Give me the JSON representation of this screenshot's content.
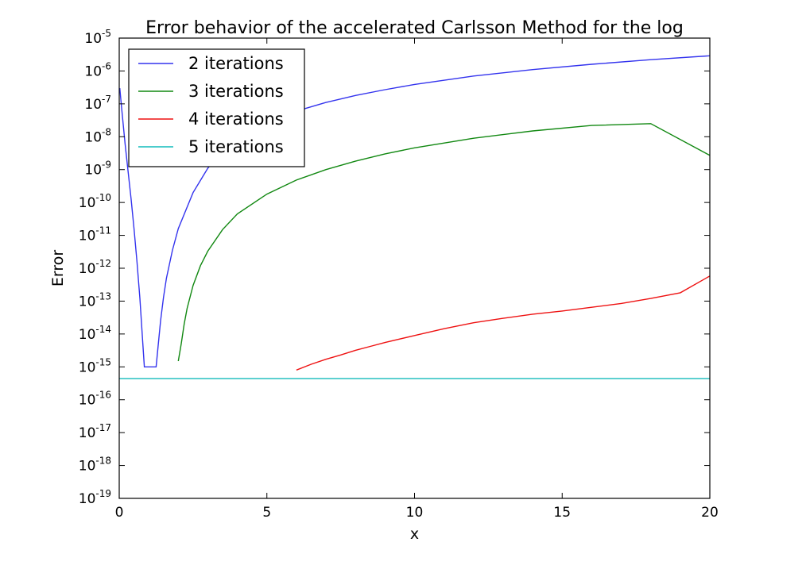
{
  "chart_data": {
    "type": "line",
    "title": "Error behavior of the accelerated Carlsson Method for the log",
    "xlabel": "x",
    "ylabel": "Error",
    "xlim": [
      0,
      20
    ],
    "ylim": [
      1e-19,
      1e-05
    ],
    "yscale": "log",
    "x_ticks": [
      0,
      5,
      10,
      15,
      20
    ],
    "x_tick_labels": [
      "0",
      "5",
      "10",
      "15",
      "20"
    ],
    "y_ticks": [
      {
        "base": "10",
        "exp": "-19"
      },
      {
        "base": "10",
        "exp": "-18"
      },
      {
        "base": "10",
        "exp": "-17"
      },
      {
        "base": "10",
        "exp": "-16"
      },
      {
        "base": "10",
        "exp": "-15"
      },
      {
        "base": "10",
        "exp": "-14"
      },
      {
        "base": "10",
        "exp": "-13"
      },
      {
        "base": "10",
        "exp": "-12"
      },
      {
        "base": "10",
        "exp": "-11"
      },
      {
        "base": "10",
        "exp": "-10"
      },
      {
        "base": "10",
        "exp": "-9"
      },
      {
        "base": "10",
        "exp": "-8"
      },
      {
        "base": "10",
        "exp": "-7"
      },
      {
        "base": "10",
        "exp": "-6"
      },
      {
        "base": "10",
        "exp": "-5"
      }
    ],
    "grid": false,
    "legend_position": "top-left",
    "series": [
      {
        "name": "2 iterations",
        "color": "#3333ee",
        "points": [
          [
            0.02,
            3e-07
          ],
          [
            0.1,
            5e-08
          ],
          [
            0.2,
            6e-09
          ],
          [
            0.3,
            9e-10
          ],
          [
            0.4,
            1.3e-10
          ],
          [
            0.5,
            1.6e-11
          ],
          [
            0.6,
            1.6e-12
          ],
          [
            0.7,
            1.2e-13
          ],
          [
            0.8,
            5e-15
          ],
          [
            0.85,
            1e-15
          ],
          [
            1.25,
            1e-15
          ],
          [
            1.3,
            3e-15
          ],
          [
            1.4,
            2.5e-14
          ],
          [
            1.5,
            1.3e-13
          ],
          [
            1.6,
            5e-13
          ],
          [
            1.8,
            3.5e-12
          ],
          [
            2.0,
            1.6e-11
          ],
          [
            2.5,
            2e-10
          ],
          [
            3,
            1.1e-09
          ],
          [
            3.5,
            3.8e-09
          ],
          [
            4,
            8.5e-09
          ],
          [
            5,
            2.7e-08
          ],
          [
            6,
            6e-08
          ],
          [
            7,
            1.1e-07
          ],
          [
            8,
            1.8e-07
          ],
          [
            9,
            2.7e-07
          ],
          [
            10,
            3.9e-07
          ],
          [
            12,
            7e-07
          ],
          [
            14,
            1.1e-06
          ],
          [
            16,
            1.6e-06
          ],
          [
            18,
            2.2e-06
          ],
          [
            20,
            2.9e-06
          ]
        ]
      },
      {
        "name": "3 iterations",
        "color": "#118811",
        "points": [
          [
            2.0,
            1.5e-15
          ],
          [
            2.1,
            5e-15
          ],
          [
            2.2,
            2e-14
          ],
          [
            2.3,
            6e-14
          ],
          [
            2.5,
            3e-13
          ],
          [
            2.75,
            1.2e-12
          ],
          [
            3,
            3.3e-12
          ],
          [
            3.5,
            1.5e-11
          ],
          [
            4,
            4.5e-11
          ],
          [
            5,
            1.8e-10
          ],
          [
            6,
            4.8e-10
          ],
          [
            7,
            1e-09
          ],
          [
            8,
            1.8e-09
          ],
          [
            9,
            3e-09
          ],
          [
            10,
            4.6e-09
          ],
          [
            12,
            9e-09
          ],
          [
            14,
            1.5e-08
          ],
          [
            16,
            2.2e-08
          ],
          [
            18,
            2.5e-08
          ],
          [
            20,
            2.7e-09
          ]
        ]
      },
      {
        "name": "4 iterations",
        "color": "#ee1111",
        "points": [
          [
            6,
            8e-16
          ],
          [
            6.5,
            1.2e-15
          ],
          [
            7,
            1.7e-15
          ],
          [
            7.5,
            2.3e-15
          ],
          [
            8,
            3.2e-15
          ],
          [
            8.5,
            4.2e-15
          ],
          [
            9,
            5.5e-15
          ],
          [
            10,
            9e-15
          ],
          [
            11,
            1.45e-14
          ],
          [
            12,
            2.2e-14
          ],
          [
            13,
            3e-14
          ],
          [
            14,
            4e-14
          ],
          [
            15,
            5e-14
          ],
          [
            16,
            6.5e-14
          ],
          [
            17,
            8.5e-14
          ],
          [
            18,
            1.2e-13
          ],
          [
            19,
            1.8e-13
          ],
          [
            20,
            5.8e-13
          ]
        ]
      },
      {
        "name": "5 iterations",
        "color": "#11bbbb",
        "points": [
          [
            0,
            4.4e-16
          ],
          [
            20,
            4.4e-16
          ]
        ]
      }
    ]
  }
}
